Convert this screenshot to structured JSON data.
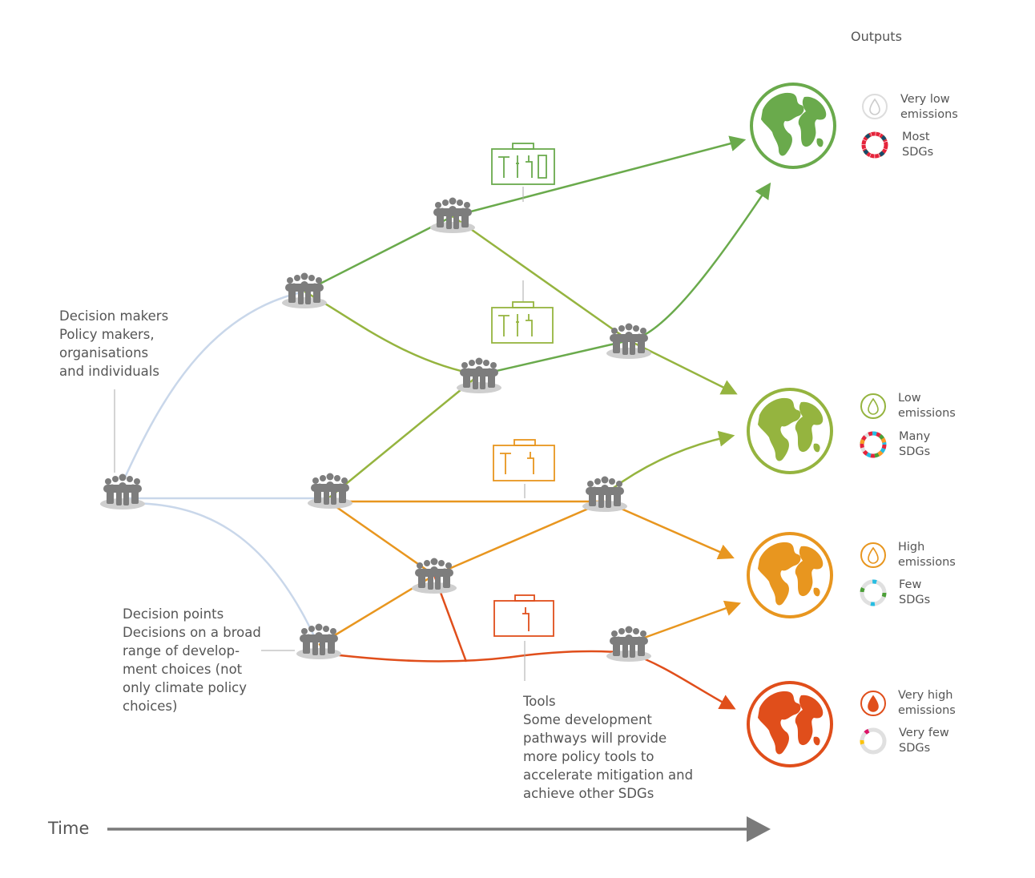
{
  "header": {
    "outputs_label": "Outputs"
  },
  "labels": {
    "decision_makers": [
      "Decision makers",
      "Policy makers,",
      "organisations",
      "and individuals"
    ],
    "decision_points": [
      "Decision points",
      "Decisions on a broad",
      "range of develop-",
      "ment choices (not",
      "only climate policy",
      "choices)"
    ],
    "tools": [
      "Tools",
      "Some development",
      "pathways will provide",
      "more policy tools to",
      "accelerate mitigation and",
      "achieve other SDGs"
    ],
    "time": "Time"
  },
  "outputs": [
    {
      "emissions": [
        "Very low",
        "emissions"
      ],
      "sdgs": [
        "Most",
        "SDGs"
      ],
      "color": "#6aaa4c"
    },
    {
      "emissions": [
        "Low",
        "emissions"
      ],
      "sdgs": [
        "Many",
        "SDGs"
      ],
      "color": "#95b43f"
    },
    {
      "emissions": [
        "High",
        "emissions"
      ],
      "sdgs": [
        "Few",
        "SDGs"
      ],
      "color": "#e8961f"
    },
    {
      "emissions": [
        "Very high",
        "emissions"
      ],
      "sdgs": [
        "Very few",
        "SDGs"
      ],
      "color": "#e04e1b"
    }
  ],
  "colors": {
    "very_low": "#6aaa4c",
    "low": "#95b43f",
    "high": "#e8961f",
    "very_high": "#e04e1b",
    "start_paths": "#c9d7ea",
    "node": "#808080",
    "time_arrow": "#7a7a7a"
  }
}
